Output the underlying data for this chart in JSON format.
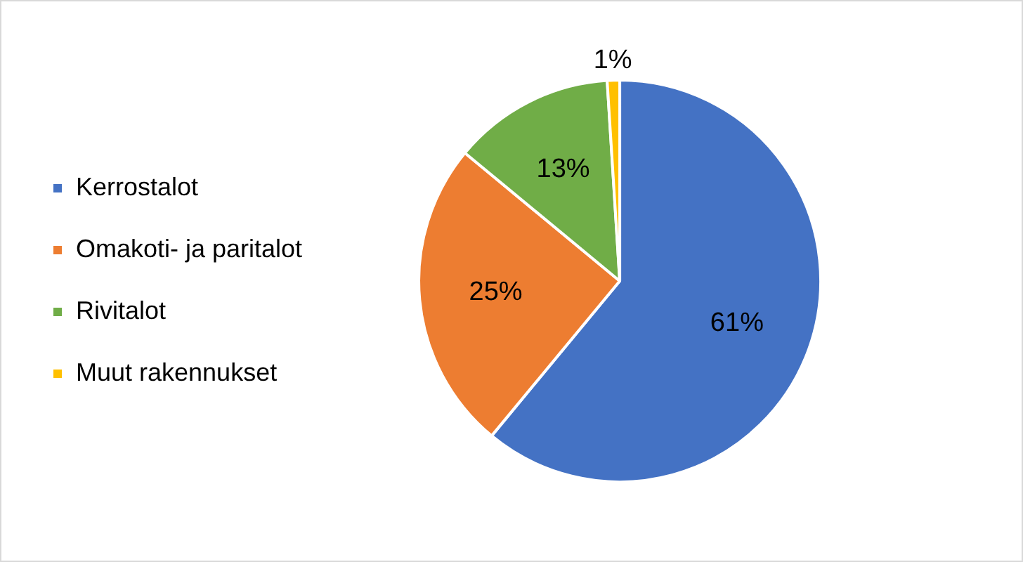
{
  "chart_data": {
    "type": "pie",
    "categories": [
      "Kerrostalot",
      "Omakoti- ja paritalot",
      "Rivitalot",
      "Muut rakennukset"
    ],
    "values": [
      61,
      25,
      13,
      1
    ],
    "value_labels": [
      "61%",
      "25%",
      "13%",
      "1%"
    ],
    "colors": [
      "#4472c4",
      "#ed7d31",
      "#70ad47",
      "#ffc000"
    ],
    "legend": "left"
  }
}
